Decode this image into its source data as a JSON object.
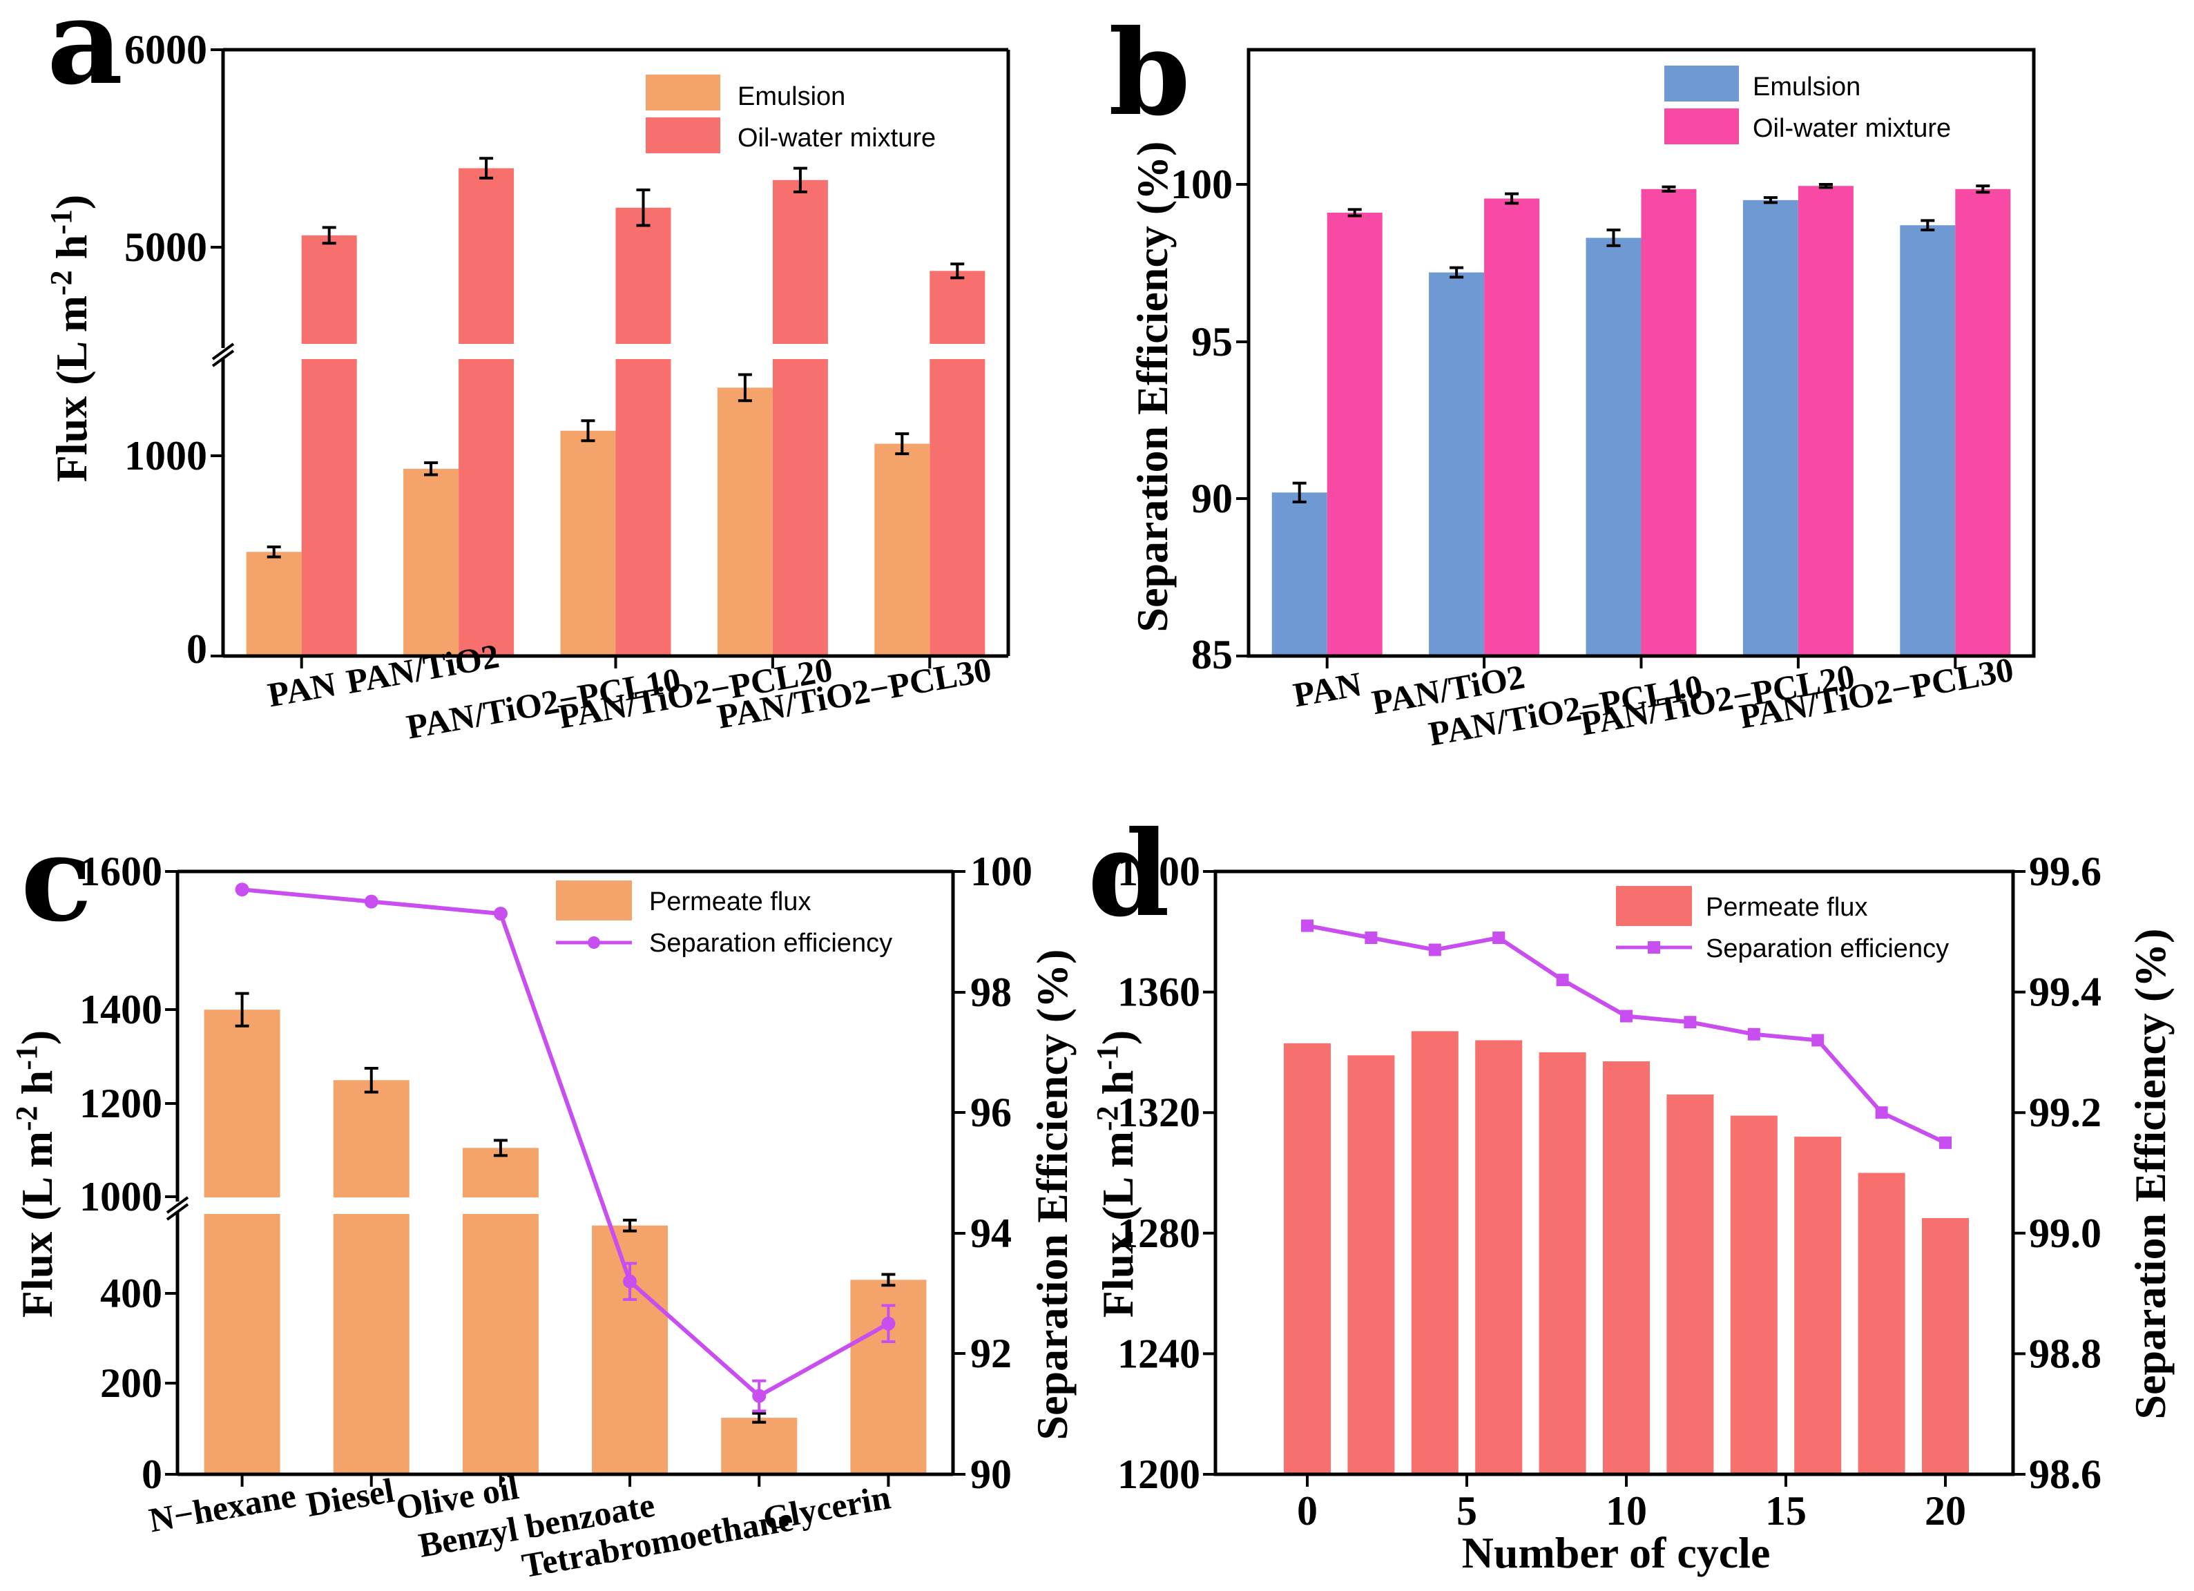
{
  "colors": {
    "orange": "#F4A46A",
    "salmon": "#F7706D",
    "blue": "#6F99D2",
    "pink": "#F84AA4",
    "purple": "#C94EF0"
  },
  "chart_data": [
    {
      "panel": "a",
      "type": "bar",
      "ylabel": "Flux (L m-2 h-1)",
      "broken_y_axis": true,
      "lower_range": [
        0,
        1500
      ],
      "upper_range": [
        4500,
        6000
      ],
      "categories": [
        "PAN",
        "PAN/TiO2",
        "PAN/TiO2-PCL10",
        "PAN/TiO2-PCL20",
        "PAN/TiO2-PCL30"
      ],
      "series": [
        {
          "name": "Emulsion",
          "values": [
            520,
            935,
            1125,
            1340,
            1060
          ],
          "errors": [
            25,
            30,
            50,
            65,
            50
          ]
        },
        {
          "name": "Oil-water mixture",
          "values": [
            5060,
            5400,
            5200,
            5340,
            4880
          ],
          "errors": [
            40,
            50,
            90,
            60,
            35
          ]
        }
      ],
      "yticks_lower": [
        "0",
        "1000"
      ],
      "yticks_upper": [
        "5000",
        "6000"
      ],
      "legend": [
        "Emulsion",
        "Oil-water mixture"
      ]
    },
    {
      "panel": "b",
      "type": "bar",
      "ylabel": "Separation Efficiency (%)",
      "ylim": [
        85,
        104.3
      ],
      "categories": [
        "PAN",
        "PAN/TiO2",
        "PAN/TiO2-PCL10",
        "PAN/TiO2-PCL20",
        "PAN/TiO2-PCL30"
      ],
      "series": [
        {
          "name": "Emulsion",
          "values": [
            90.2,
            97.2,
            98.3,
            99.5,
            98.7
          ],
          "errors": [
            0.3,
            0.15,
            0.25,
            0.08,
            0.15
          ]
        },
        {
          "name": "Oil-water mixture",
          "values": [
            99.1,
            99.55,
            99.85,
            99.95,
            99.85
          ],
          "errors": [
            0.1,
            0.15,
            0.07,
            0.05,
            0.1
          ]
        }
      ],
      "yticks": [
        "85",
        "90",
        "95",
        "100"
      ],
      "legend": [
        "Emulsion",
        "Oil-water mixture"
      ]
    },
    {
      "panel": "c",
      "type": "bar+line",
      "ylabel": "Flux (L m-2 h-1)",
      "ylabel_right": "Separation Efficiency (%)",
      "broken_y_axis": true,
      "lower_range": [
        0,
        650
      ],
      "upper_range": [
        980,
        1600
      ],
      "y2lim": [
        90,
        100
      ],
      "categories": [
        "N-hexane",
        "Diesel",
        "Olive oil",
        "Benzyl benzoate",
        "Tetrabromoethane",
        "Glycerin"
      ],
      "series": [
        {
          "name": "Permeate flux",
          "values": [
            1345,
            1215,
            1090,
            550,
            125,
            430
          ],
          "errors": [
            30,
            22,
            14,
            12,
            10,
            12
          ]
        },
        {
          "name": "Separation efficiency",
          "values": [
            99.7,
            99.5,
            99.3,
            93.2,
            91.3,
            92.5
          ],
          "errors": [
            0,
            0,
            0,
            0.3,
            0.25,
            0.3
          ]
        }
      ],
      "yticks_lower": [
        "0",
        "200",
        "400"
      ],
      "yticks_upper": [
        "1000",
        "1200",
        "1400",
        "1600"
      ],
      "y2ticks": [
        "90",
        "92",
        "94",
        "96",
        "98",
        "100"
      ],
      "legend": [
        "Permeate flux",
        "Separation efficiency"
      ]
    },
    {
      "panel": "d",
      "type": "bar+line",
      "xlabel": "Number of cycle",
      "ylabel": "Flux (L m-2 h-1)",
      "ylabel_right": "Separation Efficiency (%)",
      "x": [
        0,
        2,
        4,
        6,
        8,
        10,
        12,
        14,
        16,
        18,
        20
      ],
      "ylim": [
        1200,
        1400
      ],
      "y2lim": [
        98.6,
        99.6
      ],
      "series": [
        {
          "name": "Permeate flux",
          "values": [
            1343,
            1339,
            1347,
            1344,
            1340,
            1337,
            1326,
            1319,
            1312,
            1300,
            1285
          ]
        },
        {
          "name": "Separation efficiency",
          "values": [
            99.51,
            99.49,
            99.47,
            99.49,
            99.42,
            99.36,
            99.35,
            99.33,
            99.32,
            99.2,
            99.15
          ]
        }
      ],
      "xticks": [
        "0",
        "5",
        "10",
        "15",
        "20"
      ],
      "yticks": [
        "1200",
        "1240",
        "1280",
        "1320",
        "1360",
        "1400"
      ],
      "y2ticks": [
        "98.6",
        "98.8",
        "99.0",
        "99.2",
        "99.4",
        "99.6"
      ],
      "legend": [
        "Permeate flux",
        "Separation efficiency"
      ]
    }
  ],
  "panels": {
    "a": {
      "letter": "a",
      "ylabel_main": "Flux (L m",
      "ylabel_sup1": "-2",
      "ylabel_mid": " h",
      "ylabel_sup2": "-1",
      "ylabel_end": ")",
      "yt0": "0",
      "yt1000": "1000",
      "yt5000": "5000",
      "yt6000": "6000",
      "cat0": "PAN",
      "cat1": "PAN/TiO2",
      "cat2": "PAN/TiO2−PCL10",
      "cat3": "PAN/TiO2−PCL20",
      "cat4": "PAN/TiO2−PCL30",
      "leg1": "Emulsion",
      "leg2": "Oil-water mixture"
    },
    "b": {
      "letter": "b",
      "ylabel": "Separation Efficiency (%)",
      "yt85": "85",
      "yt90": "90",
      "yt95": "95",
      "yt100": "100",
      "cat0": "PAN",
      "cat1": "PAN/TiO2",
      "cat2": "PAN/TiO2−PCL10",
      "cat3": "PAN/TiO2−PCL20",
      "cat4": "PAN/TiO2−PCL30",
      "leg1": "Emulsion",
      "leg2": "Oil-water mixture"
    },
    "c": {
      "letter": "c",
      "ylabel_main": "Flux (L m",
      "ylabel_sup1": "-2",
      "ylabel_mid": " h",
      "ylabel_sup2": "-1",
      "ylabel_end": ")",
      "ylabel_right": "Separation Efficiency (%)",
      "yt0": "0",
      "yt200": "200",
      "yt400": "400",
      "yt1000": "1000",
      "yt1200": "1200",
      "yt1400": "1400",
      "yt1600": "1600",
      "y2t90": "90",
      "y2t92": "92",
      "y2t94": "94",
      "y2t96": "96",
      "y2t98": "98",
      "y2t100": "100",
      "cat0": "N−hexane",
      "cat1": "Diesel",
      "cat2": "Olive oil",
      "cat3": "Benzyl benzoate",
      "cat4": "Tetrabromoethane",
      "cat5": "Glycerin",
      "leg1": "Permeate flux",
      "leg2": "Separation efficiency"
    },
    "d": {
      "letter": "d",
      "xlabel": "Number of cycle",
      "ylabel_main": "Flux (L m",
      "ylabel_sup1": "-2",
      "ylabel_mid": " h",
      "ylabel_sup2": "-1",
      "ylabel_end": ")",
      "ylabel_right": "Separation Efficiency (%)",
      "xt0": "0",
      "xt5": "5",
      "xt10": "10",
      "xt15": "15",
      "xt20": "20",
      "yt1200": "1200",
      "yt1240": "1240",
      "yt1280": "1280",
      "yt1320": "1320",
      "yt1360": "1360",
      "yt1400": "1400",
      "y2t986": "98.6",
      "y2t988": "98.8",
      "y2t990": "99.0",
      "y2t992": "99.2",
      "y2t994": "99.4",
      "y2t996": "99.6",
      "leg1": "Permeate flux",
      "leg2": "Separation efficiency"
    }
  }
}
